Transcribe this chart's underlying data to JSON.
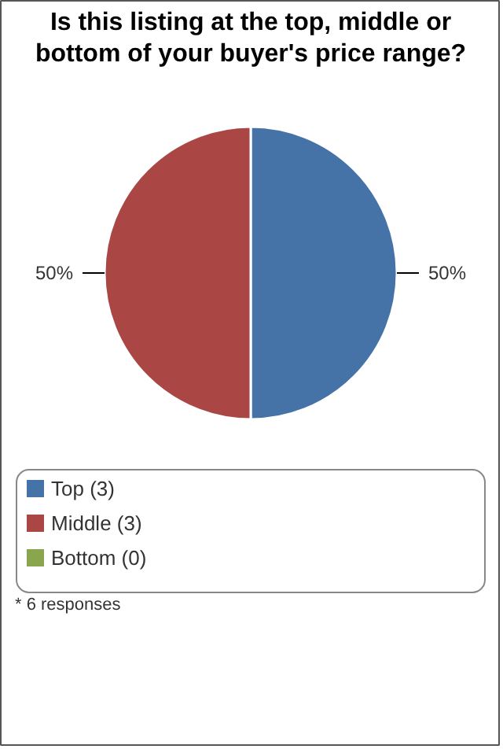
{
  "chart_data": {
    "type": "pie",
    "title": "Is this listing at the top, middle or bottom of your buyer's price range?",
    "categories": [
      "Top (3)",
      "Middle (3)",
      "Bottom (0)"
    ],
    "values": [
      50,
      50,
      0
    ],
    "colors": [
      "#4572a7",
      "#aa4643",
      "#89a54e"
    ],
    "value_labels": [
      "50%",
      "50%",
      null
    ],
    "legend": "bottom",
    "annotations": [
      "* 6 responses"
    ]
  }
}
